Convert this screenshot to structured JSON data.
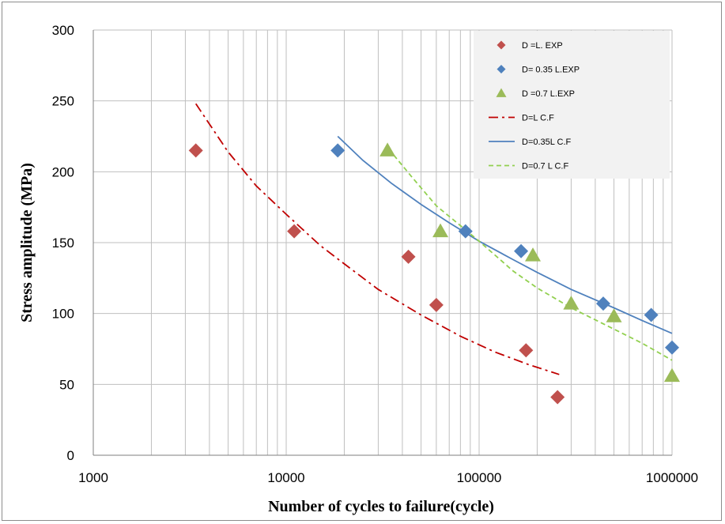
{
  "chart_data": {
    "type": "scatter",
    "xlabel": "Number of cycles to failure(cycle)",
    "ylabel": "Stress amplitude (MPa)",
    "xscale": "log",
    "xlim": [
      1000,
      1000000
    ],
    "ylim": [
      0,
      300
    ],
    "x_ticks": [
      "1000",
      "10000",
      "100000",
      "1000000"
    ],
    "y_ticks": [
      "0",
      "50",
      "100",
      "150",
      "200",
      "250",
      "300"
    ],
    "grid": "vertical minor and major lines, horizontal major lines",
    "legend_position": "top-right",
    "series": [
      {
        "name": "D =L. EXP",
        "kind": "marker",
        "marker": "diamond",
        "color": "#c0504d",
        "points": [
          [
            3400,
            215
          ],
          [
            11000,
            158
          ],
          [
            43000,
            140
          ],
          [
            60000,
            106
          ],
          [
            175000,
            74
          ],
          [
            255000,
            41
          ]
        ]
      },
      {
        "name": "D= 0.35 L.EXP",
        "kind": "marker",
        "marker": "diamond",
        "color": "#4f81bd",
        "points": [
          [
            18500,
            215
          ],
          [
            85000,
            158
          ],
          [
            165000,
            144
          ],
          [
            440000,
            107
          ],
          [
            780000,
            99
          ],
          [
            1000000,
            76
          ]
        ]
      },
      {
        "name": "D =0.7 L.EXP",
        "kind": "marker",
        "marker": "triangle",
        "color": "#9bbb59",
        "points": [
          [
            33500,
            215
          ],
          [
            63000,
            158
          ],
          [
            190000,
            141
          ],
          [
            300000,
            107
          ],
          [
            500000,
            98
          ],
          [
            1000000,
            56
          ]
        ]
      },
      {
        "name": "D=L C.F",
        "kind": "line",
        "dash": "dash-dot",
        "color": "#c00000",
        "points": [
          [
            3400,
            248
          ],
          [
            5000,
            214
          ],
          [
            7000,
            190
          ],
          [
            10000,
            170
          ],
          [
            15000,
            148
          ],
          [
            20000,
            135
          ],
          [
            30000,
            117
          ],
          [
            50000,
            99
          ],
          [
            80000,
            84
          ],
          [
            120000,
            73
          ],
          [
            180000,
            64
          ],
          [
            260000,
            57
          ]
        ]
      },
      {
        "name": "D=0.35L C.F",
        "kind": "line",
        "dash": "solid",
        "color": "#4f81bd",
        "points": [
          [
            18500,
            225
          ],
          [
            25000,
            208
          ],
          [
            35000,
            192
          ],
          [
            50000,
            177
          ],
          [
            70000,
            164
          ],
          [
            100000,
            151
          ],
          [
            150000,
            138
          ],
          [
            200000,
            129
          ],
          [
            300000,
            117
          ],
          [
            500000,
            104
          ],
          [
            700000,
            95
          ],
          [
            1000000,
            86
          ]
        ]
      },
      {
        "name": "D=0.7 L C.F",
        "kind": "line",
        "dash": "dashed",
        "color": "#92d050",
        "points": [
          [
            34000,
            216
          ],
          [
            45000,
            196
          ],
          [
            60000,
            176
          ],
          [
            80000,
            162
          ],
          [
            100000,
            151
          ],
          [
            150000,
            130
          ],
          [
            200000,
            118
          ],
          [
            300000,
            104
          ],
          [
            500000,
            89
          ],
          [
            700000,
            79
          ],
          [
            1000000,
            67
          ]
        ]
      }
    ]
  }
}
